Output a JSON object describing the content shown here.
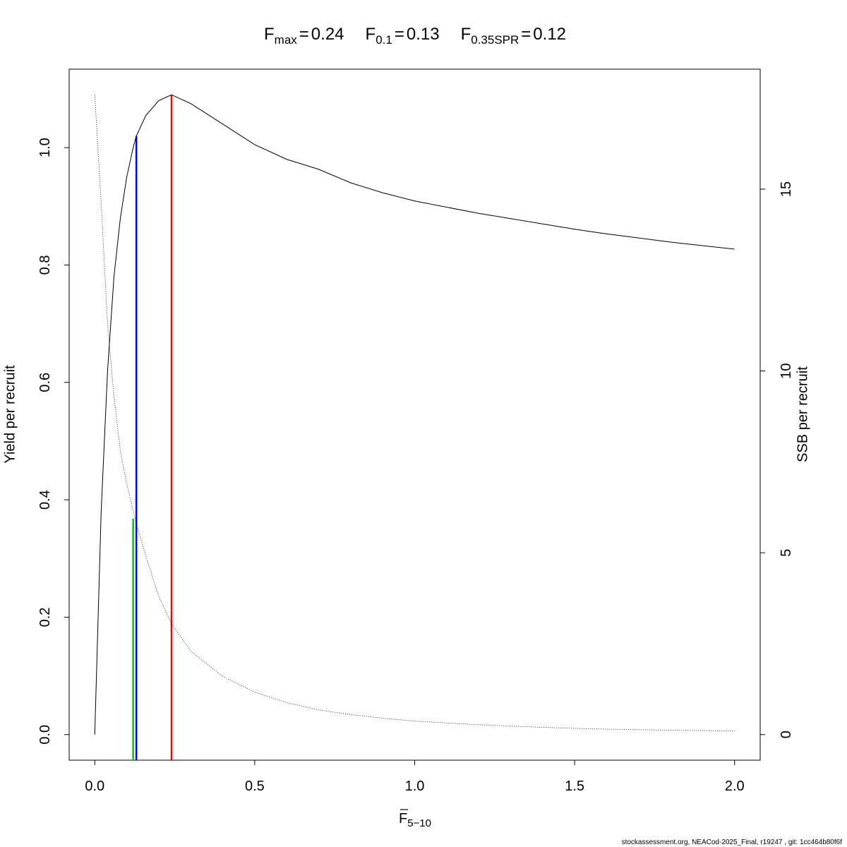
{
  "chart_data": {
    "type": "line",
    "title": [
      {
        "symbol": "F",
        "subscript": "max",
        "relation": "=",
        "value": 0.24
      },
      {
        "symbol": "F",
        "subscript": "0.1",
        "relation": "=",
        "value": 0.13
      },
      {
        "symbol": "F",
        "subscript": "0.35SPR",
        "relation": "=",
        "value": 0.12
      }
    ],
    "x_label": {
      "symbol": "F",
      "subscript": "5−10",
      "overbar": true
    },
    "y_label": "Yield per recruit",
    "y2_label": "SSB per recruit",
    "x": [
      0,
      0.02,
      0.04,
      0.06,
      0.08,
      0.1,
      0.12,
      0.13,
      0.16,
      0.2,
      0.24,
      0.3,
      0.4,
      0.5,
      0.6,
      0.7,
      0.8,
      0.9,
      1.0,
      1.2,
      1.4,
      1.5,
      1.6,
      1.8,
      2.0
    ],
    "series": [
      {
        "color": "#000000",
        "line_style": "solid",
        "values": [
          0,
          0.38,
          0.62,
          0.78,
          0.88,
          0.95,
          1.0,
          1.02,
          1.055,
          1.08,
          1.09,
          1.075,
          1.04,
          1.005,
          0.98,
          0.963,
          0.94,
          0.923,
          0.909,
          0.888,
          0.87,
          0.861,
          0.853,
          0.839,
          0.827
        ]
      },
      {
        "color": "#000000",
        "line_style": "dotted",
        "axis": "y2",
        "values": [
          17.6,
          14.6,
          11.3,
          9.3,
          7.8,
          6.9,
          6.16,
          5.8,
          4.9,
          3.8,
          3.05,
          2.3,
          1.6,
          1.17,
          0.88,
          0.68,
          0.55,
          0.45,
          0.37,
          0.27,
          0.2,
          0.17,
          0.15,
          0.12,
          0.1
        ]
      }
    ],
    "reference_lines": [
      {
        "x": 0.24,
        "y": 1.09,
        "color": "#ff0000"
      },
      {
        "x": 0.13,
        "y": 1.02,
        "color": "#0000ff"
      },
      {
        "x": 0.12,
        "y": 0.368,
        "color": "#00cd00"
      }
    ],
    "xlim": [
      -0.08,
      2.08
    ],
    "xticks": [
      {
        "value": 0,
        "label": "0.0"
      },
      0.5,
      {
        "value": 1,
        "label": "1.0"
      },
      1.5,
      {
        "value": 2,
        "label": "2.0"
      }
    ],
    "ylim": [
      -0.0436,
      1.1336
    ],
    "yticks": [
      {
        "value": 0,
        "label": "0.0"
      },
      0.2,
      0.4,
      0.6,
      0.8,
      {
        "value": 1,
        "label": "1.0"
      }
    ],
    "y2lim": [
      -0.704,
      18.3
    ],
    "y2ticks": [
      0,
      5,
      10,
      15
    ],
    "footer": "stockassessment.org, NEACod-2025_Final, r19247 , git: 1cc464b80f6f"
  }
}
